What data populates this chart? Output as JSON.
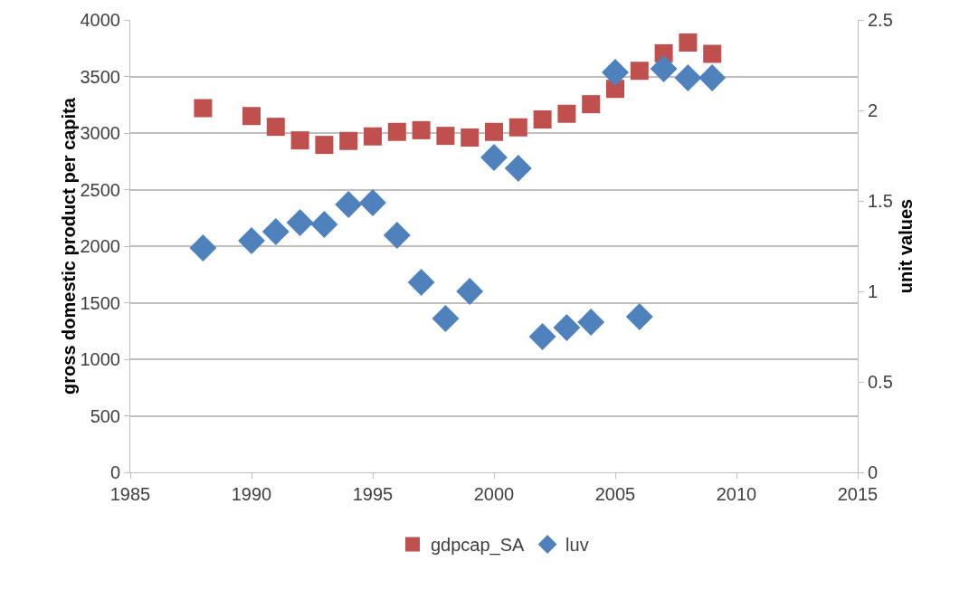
{
  "chart_data": {
    "type": "scatter",
    "ylabel": "gross domestic product per capita",
    "y2label": "unit values",
    "x": [
      1988,
      1990,
      1991,
      1992,
      1993,
      1994,
      1995,
      1996,
      1997,
      1998,
      1999,
      2000,
      2001,
      2002,
      2003,
      2004,
      2005,
      2006,
      2007,
      2008,
      2009
    ],
    "series": [
      {
        "name": "gdpcap_SA",
        "color": "#c0504d",
        "marker": "square",
        "values": [
          3220,
          3150,
          3055,
          2935,
          2895,
          2930,
          2970,
          3010,
          3025,
          2975,
          2960,
          3010,
          3050,
          3120,
          3170,
          3255,
          3390,
          3550,
          3705,
          3800,
          3700
        ]
      },
      {
        "name": "luv",
        "color": "#4f81bd",
        "marker": "diamond",
        "axis": "y2",
        "values": [
          1.24,
          1.28,
          1.33,
          1.38,
          1.37,
          1.48,
          1.49,
          1.31,
          1.05,
          0.85,
          1.0,
          1.74,
          1.68,
          0.75,
          0.8,
          0.83,
          2.21,
          0.86,
          2.23,
          2.18,
          2.18
        ]
      }
    ],
    "xlim": [
      1985,
      2015
    ],
    "xticks": [
      1985,
      1990,
      1995,
      2000,
      2005,
      2010,
      2015
    ],
    "ylim": [
      0,
      4000
    ],
    "yticks": [
      0,
      500,
      1000,
      1500,
      2000,
      2500,
      3000,
      3500,
      4000
    ],
    "y2lim": [
      0,
      2.5
    ],
    "y2ticks": [
      0,
      0.5,
      1,
      1.5,
      2,
      2.5
    ],
    "grid": "y",
    "legend": "bottom"
  }
}
